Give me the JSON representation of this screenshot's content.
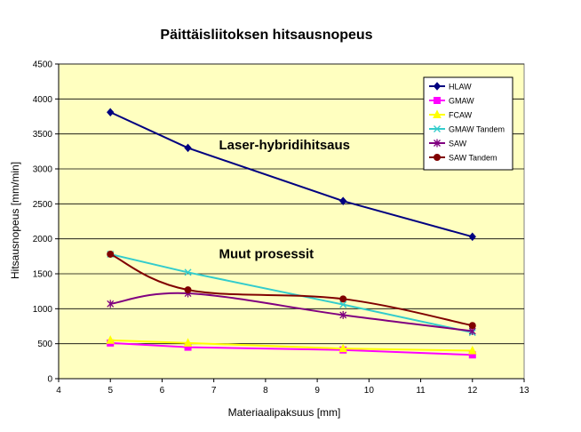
{
  "chart_data": {
    "type": "line",
    "title": "Päittäisliitoksen hitsausnopeus",
    "xlabel": "Materiaalipaksuus [mm]",
    "ylabel": "Hitsausnopeus [mm/min]",
    "xlim": [
      4,
      13
    ],
    "ylim": [
      0,
      4500
    ],
    "x_ticks": [
      "4",
      "5",
      "6",
      "7",
      "8",
      "9",
      "10",
      "11",
      "12",
      "13"
    ],
    "y_ticks": [
      "0",
      "500",
      "1000",
      "1500",
      "2000",
      "2500",
      "3000",
      "3500",
      "4000",
      "4500"
    ],
    "grid": "horizontal",
    "legend_position": "top-right",
    "plot_background": "#ffffc0",
    "annotations": [
      {
        "text": "Laser-hybridihitsaus",
        "x": 7.1,
        "y": 3280
      },
      {
        "text": "Muut prosessit",
        "x": 7.1,
        "y": 1720
      }
    ],
    "series": [
      {
        "name": "HLAW",
        "color": "#000080",
        "marker": "diamond",
        "x": [
          5,
          6.5,
          9.5,
          12
        ],
        "y": [
          3810,
          3300,
          2540,
          2030
        ],
        "smooth": false
      },
      {
        "name": "GMAW",
        "color": "#ff00ff",
        "marker": "square",
        "x": [
          5,
          6.5,
          9.5,
          12
        ],
        "y": [
          510,
          450,
          410,
          340
        ],
        "smooth": false
      },
      {
        "name": "FCAW",
        "color": "#ffff00",
        "marker": "triangle",
        "x": [
          5,
          6.5,
          9.5,
          12
        ],
        "y": [
          550,
          510,
          430,
          400
        ],
        "smooth": false
      },
      {
        "name": "GMAW Tandem",
        "color": "#33cccc",
        "marker": "x",
        "x": [
          5,
          6.5,
          9.5,
          12
        ],
        "y": [
          1780,
          1520,
          1060,
          660
        ],
        "smooth": false
      },
      {
        "name": "SAW",
        "color": "#800080",
        "marker": "star",
        "x": [
          5,
          6.5,
          9.5,
          12
        ],
        "y": [
          1070,
          1220,
          910,
          680
        ],
        "smooth": true
      },
      {
        "name": "SAW Tandem",
        "color": "#800000",
        "marker": "circle",
        "x": [
          5,
          6.5,
          9.5,
          12
        ],
        "y": [
          1780,
          1270,
          1140,
          760
        ],
        "smooth": true
      }
    ]
  }
}
